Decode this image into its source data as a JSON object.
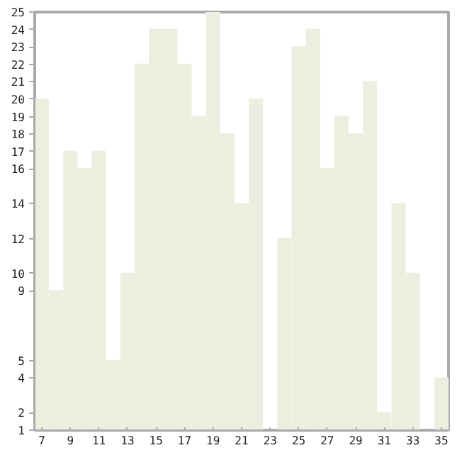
{
  "chart_data": {
    "type": "bar",
    "x": [
      7,
      8,
      9,
      10,
      11,
      12,
      13,
      14,
      15,
      16,
      17,
      18,
      19,
      20,
      21,
      22,
      23,
      24,
      25,
      26,
      27,
      28,
      29,
      30,
      31,
      32,
      33,
      34,
      35
    ],
    "values": [
      20,
      9,
      17,
      16,
      17,
      5,
      10,
      22,
      24,
      24,
      22,
      19,
      25,
      18,
      14,
      20,
      1,
      12,
      23,
      24,
      16,
      19,
      18,
      21,
      2,
      14,
      10,
      1,
      4
    ],
    "color": "#eeeee0",
    "xlim": [
      6.5,
      35.5
    ],
    "ylim": [
      1,
      25
    ],
    "xticks": [
      7,
      9,
      11,
      13,
      15,
      17,
      19,
      21,
      23,
      25,
      27,
      29,
      31,
      33,
      35
    ],
    "yticks": [
      1,
      2,
      4,
      5,
      9,
      10,
      12,
      14,
      16,
      17,
      18,
      19,
      20,
      21,
      22,
      23,
      24,
      25
    ],
    "grid": false
  }
}
